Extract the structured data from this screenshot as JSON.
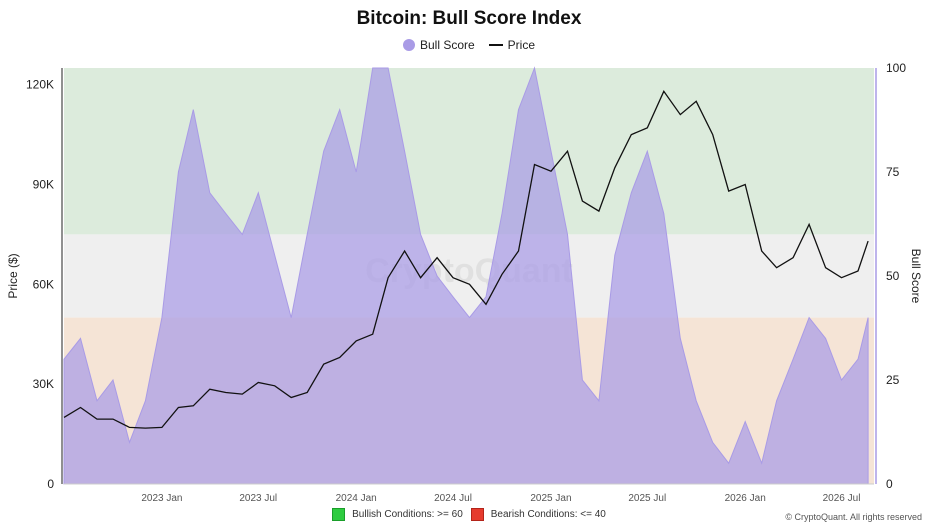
{
  "title": "Bitcoin: Bull Score Index",
  "legend": {
    "bull_score": "Bull Score",
    "price": "Price"
  },
  "left_axis_label": "Price ($)",
  "right_axis_label": "Bull Score",
  "watermark": "CryptoQuant",
  "bottom_legend": {
    "bullish": "Bullish Conditions: >= 60",
    "bearish": "Bearish Conditions: <= 40"
  },
  "credit": "© CryptoQuant. All rights reserved",
  "colors": {
    "bull_fill": "#a99be6",
    "bull_zone": "#dcebdc",
    "neutral_zone": "#efefef",
    "bear_zone": "#f5e4d6",
    "price_line": "#111111"
  },
  "chart_data": {
    "type": "line",
    "x_start": "2022-07-01",
    "x_end": "2026-08-31",
    "x_ticks": [
      {
        "date": "2023-01-01",
        "label": "2023 Jan"
      },
      {
        "date": "2023-07-01",
        "label": "2023 Jul"
      },
      {
        "date": "2024-01-01",
        "label": "2024 Jan"
      },
      {
        "date": "2024-07-01",
        "label": "2024 Jul"
      },
      {
        "date": "2025-01-01",
        "label": "2025 Jan"
      },
      {
        "date": "2025-07-01",
        "label": "2025 Jul"
      },
      {
        "date": "2026-01-01",
        "label": "2026 Jan"
      },
      {
        "date": "2026-07-01",
        "label": "2026 Jul"
      }
    ],
    "y_left": {
      "min": 0,
      "max": 125000,
      "ticks": [
        {
          "value": 0,
          "label": "0"
        },
        {
          "value": 30000,
          "label": "30K"
        },
        {
          "value": 60000,
          "label": "60K"
        },
        {
          "value": 90000,
          "label": "90K"
        },
        {
          "value": 120000,
          "label": "120K"
        }
      ]
    },
    "y_right": {
      "min": 0,
      "max": 100,
      "ticks": [
        {
          "value": 0,
          "label": "0"
        },
        {
          "value": 25,
          "label": "25"
        },
        {
          "value": 50,
          "label": "50"
        },
        {
          "value": 75,
          "label": "75"
        },
        {
          "value": 100,
          "label": "100"
        }
      ]
    },
    "zones": [
      {
        "name": "bull",
        "from": 60,
        "to": 100
      },
      {
        "name": "neutral",
        "from": 40,
        "to": 60
      },
      {
        "name": "bear",
        "from": 0,
        "to": 40
      }
    ],
    "series": [
      {
        "name": "Price",
        "axis": "left",
        "points": [
          [
            "2022-07-01",
            20000
          ],
          [
            "2022-08-01",
            23000
          ],
          [
            "2022-09-01",
            19500
          ],
          [
            "2022-10-01",
            19500
          ],
          [
            "2022-11-01",
            17000
          ],
          [
            "2022-12-01",
            16800
          ],
          [
            "2023-01-01",
            17000
          ],
          [
            "2023-02-01",
            23000
          ],
          [
            "2023-03-01",
            23500
          ],
          [
            "2023-04-01",
            28500
          ],
          [
            "2023-05-01",
            27500
          ],
          [
            "2023-06-01",
            27000
          ],
          [
            "2023-07-01",
            30500
          ],
          [
            "2023-08-01",
            29500
          ],
          [
            "2023-09-01",
            26000
          ],
          [
            "2023-10-01",
            27500
          ],
          [
            "2023-11-01",
            36000
          ],
          [
            "2023-12-01",
            38000
          ],
          [
            "2024-01-01",
            43000
          ],
          [
            "2024-02-01",
            45000
          ],
          [
            "2024-03-01",
            62000
          ],
          [
            "2024-04-01",
            70000
          ],
          [
            "2024-05-01",
            62000
          ],
          [
            "2024-06-01",
            68000
          ],
          [
            "2024-07-01",
            62000
          ],
          [
            "2024-08-01",
            60000
          ],
          [
            "2024-09-01",
            54000
          ],
          [
            "2024-10-01",
            63000
          ],
          [
            "2024-11-01",
            70000
          ],
          [
            "2024-12-01",
            96000
          ],
          [
            "2025-01-01",
            94000
          ],
          [
            "2025-02-01",
            100000
          ],
          [
            "2025-03-01",
            85000
          ],
          [
            "2025-04-01",
            82000
          ],
          [
            "2025-05-01",
            95000
          ],
          [
            "2025-06-01",
            105000
          ],
          [
            "2025-07-01",
            107000
          ],
          [
            "2025-08-01",
            118000
          ],
          [
            "2025-09-01",
            111000
          ],
          [
            "2025-10-01",
            115000
          ],
          [
            "2025-11-01",
            105000
          ],
          [
            "2025-12-01",
            88000
          ],
          [
            "2026-01-01",
            90000
          ],
          [
            "2026-02-01",
            70000
          ],
          [
            "2026-03-01",
            65000
          ],
          [
            "2026-04-01",
            68000
          ],
          [
            "2026-05-01",
            78000
          ],
          [
            "2026-06-01",
            65000
          ],
          [
            "2026-07-01",
            62000
          ],
          [
            "2026-08-01",
            64000
          ],
          [
            "2026-08-20",
            73000
          ]
        ]
      },
      {
        "name": "Bull Score",
        "axis": "right",
        "points": [
          [
            "2022-07-01",
            30
          ],
          [
            "2022-08-01",
            35
          ],
          [
            "2022-09-01",
            20
          ],
          [
            "2022-10-01",
            25
          ],
          [
            "2022-11-01",
            10
          ],
          [
            "2022-12-01",
            20
          ],
          [
            "2023-01-01",
            40
          ],
          [
            "2023-02-01",
            75
          ],
          [
            "2023-03-01",
            90
          ],
          [
            "2023-04-01",
            70
          ],
          [
            "2023-05-01",
            65
          ],
          [
            "2023-06-01",
            60
          ],
          [
            "2023-07-01",
            70
          ],
          [
            "2023-08-01",
            55
          ],
          [
            "2023-09-01",
            40
          ],
          [
            "2023-10-01",
            60
          ],
          [
            "2023-11-01",
            80
          ],
          [
            "2023-12-01",
            90
          ],
          [
            "2024-01-01",
            75
          ],
          [
            "2024-02-01",
            100
          ],
          [
            "2024-03-01",
            100
          ],
          [
            "2024-04-01",
            80
          ],
          [
            "2024-05-01",
            60
          ],
          [
            "2024-06-01",
            50
          ],
          [
            "2024-07-01",
            45
          ],
          [
            "2024-08-01",
            40
          ],
          [
            "2024-09-01",
            45
          ],
          [
            "2024-10-01",
            65
          ],
          [
            "2024-11-01",
            90
          ],
          [
            "2024-12-01",
            100
          ],
          [
            "2025-01-01",
            80
          ],
          [
            "2025-02-01",
            60
          ],
          [
            "2025-03-01",
            25
          ],
          [
            "2025-04-01",
            20
          ],
          [
            "2025-05-01",
            55
          ],
          [
            "2025-06-01",
            70
          ],
          [
            "2025-07-01",
            80
          ],
          [
            "2025-08-01",
            65
          ],
          [
            "2025-09-01",
            35
          ],
          [
            "2025-10-01",
            20
          ],
          [
            "2025-11-01",
            10
          ],
          [
            "2025-12-01",
            5
          ],
          [
            "2026-01-01",
            15
          ],
          [
            "2026-02-01",
            5
          ],
          [
            "2026-03-01",
            20
          ],
          [
            "2026-04-01",
            30
          ],
          [
            "2026-05-01",
            40
          ],
          [
            "2026-06-01",
            35
          ],
          [
            "2026-07-01",
            25
          ],
          [
            "2026-08-01",
            30
          ],
          [
            "2026-08-20",
            40
          ]
        ]
      }
    ],
    "legend_position": "top-center",
    "grid": false
  }
}
